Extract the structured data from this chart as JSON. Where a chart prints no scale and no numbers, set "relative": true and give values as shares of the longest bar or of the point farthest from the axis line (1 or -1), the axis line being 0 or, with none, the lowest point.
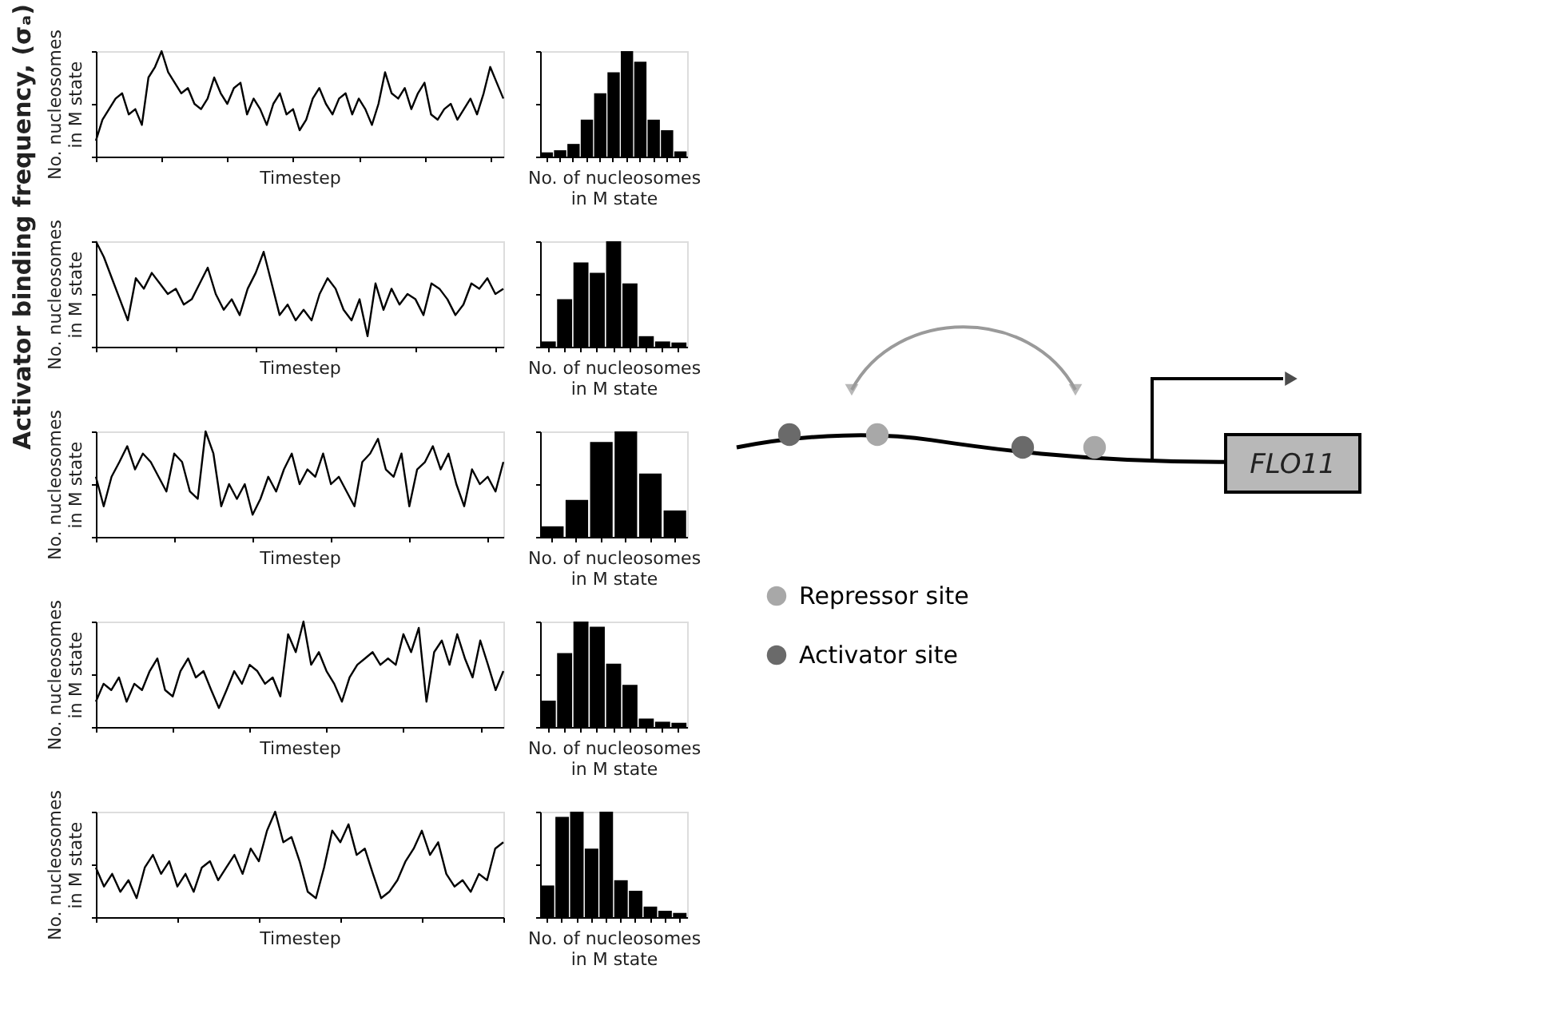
{
  "chart_data": [
    {
      "type": "other",
      "annotations": [
        "Activator binding frequency, (σₐ)"
      ]
    },
    {
      "type": "line",
      "relative": true,
      "xlabel": "Timestep",
      "ylabel": "No. nucleosomes in M state",
      "color": "#000000",
      "categories": [
        null,
        null,
        null,
        null,
        null,
        null,
        null,
        null,
        null,
        null,
        null,
        null,
        null,
        null,
        null,
        null,
        null,
        null,
        null,
        null,
        null,
        null,
        null,
        null,
        null,
        null,
        null,
        null,
        null,
        null,
        null,
        null,
        null,
        null,
        null,
        null,
        null,
        null,
        null,
        null,
        null,
        null,
        null,
        null,
        null,
        null,
        null,
        null,
        null,
        null,
        null,
        null,
        null,
        null,
        null,
        null,
        null,
        null,
        null,
        null,
        null,
        null,
        null
      ],
      "values": [
        0.15,
        0.35,
        0.45,
        0.55,
        0.6,
        0.4,
        0.45,
        0.3,
        0.75,
        0.85,
        1.0,
        0.8,
        0.7,
        0.6,
        0.65,
        0.5,
        0.45,
        0.55,
        0.75,
        0.6,
        0.5,
        0.65,
        0.7,
        0.4,
        0.55,
        0.45,
        0.3,
        0.5,
        0.6,
        0.4,
        0.45,
        0.25,
        0.35,
        0.55,
        0.65,
        0.5,
        0.4,
        0.55,
        0.6,
        0.4,
        0.55,
        0.45,
        0.3,
        0.5,
        0.8,
        0.6,
        0.55,
        0.65,
        0.45,
        0.6,
        0.7,
        0.4,
        0.35,
        0.45,
        0.5,
        0.35,
        0.45,
        0.55,
        0.4,
        0.6,
        0.85,
        0.7,
        0.55
      ]
    },
    {
      "type": "bar",
      "relative": true,
      "xlabel": "No. of nucleosomes in M state",
      "color": "#000000",
      "categories": [
        null,
        null,
        null,
        null,
        null,
        null,
        null,
        null,
        null,
        null,
        null
      ],
      "values": [
        0.04,
        0.06,
        0.12,
        0.35,
        0.6,
        0.8,
        1.0,
        0.9,
        0.35,
        0.25,
        0.05
      ]
    },
    {
      "type": "line",
      "relative": true,
      "xlabel": "Timestep",
      "ylabel": "No. nucleosomes in M state",
      "color": "#000000",
      "categories": [
        null,
        null,
        null,
        null,
        null,
        null,
        null,
        null,
        null,
        null,
        null,
        null,
        null,
        null,
        null,
        null,
        null,
        null,
        null,
        null,
        null,
        null,
        null,
        null,
        null,
        null,
        null,
        null,
        null,
        null,
        null,
        null,
        null,
        null,
        null,
        null,
        null,
        null,
        null,
        null,
        null,
        null,
        null,
        null,
        null,
        null,
        null,
        null,
        null,
        null,
        null,
        null
      ],
      "values": [
        1.0,
        0.85,
        0.65,
        0.45,
        0.25,
        0.65,
        0.55,
        0.7,
        0.6,
        0.5,
        0.55,
        0.4,
        0.45,
        0.6,
        0.75,
        0.5,
        0.35,
        0.45,
        0.3,
        0.55,
        0.7,
        0.9,
        0.6,
        0.3,
        0.4,
        0.25,
        0.35,
        0.25,
        0.5,
        0.65,
        0.55,
        0.35,
        0.25,
        0.45,
        0.1,
        0.6,
        0.35,
        0.55,
        0.4,
        0.5,
        0.45,
        0.3,
        0.6,
        0.55,
        0.45,
        0.3,
        0.4,
        0.6,
        0.55,
        0.65,
        0.5,
        0.55
      ]
    },
    {
      "type": "bar",
      "relative": true,
      "xlabel": "No. of nucleosomes in M state",
      "color": "#000000",
      "categories": [
        null,
        null,
        null,
        null,
        null,
        null,
        null,
        null,
        null
      ],
      "values": [
        0.05,
        0.45,
        0.8,
        0.7,
        1.0,
        0.6,
        0.1,
        0.05,
        0.04
      ]
    },
    {
      "type": "line",
      "relative": true,
      "xlabel": "Timestep",
      "ylabel": "No. nucleosomes in M state",
      "color": "#000000",
      "categories": [
        null,
        null,
        null,
        null,
        null,
        null,
        null,
        null,
        null,
        null,
        null,
        null,
        null,
        null,
        null,
        null,
        null,
        null,
        null,
        null,
        null,
        null,
        null,
        null,
        null,
        null,
        null,
        null,
        null,
        null,
        null,
        null,
        null,
        null,
        null,
        null,
        null,
        null,
        null,
        null,
        null,
        null,
        null,
        null,
        null,
        null,
        null,
        null,
        null,
        null,
        null,
        null,
        null
      ],
      "values": [
        0.57,
        0.29,
        0.57,
        0.71,
        0.86,
        0.64,
        0.79,
        0.71,
        0.57,
        0.43,
        0.79,
        0.71,
        0.43,
        0.36,
        1,
        0.79,
        0.29,
        0.5,
        0.36,
        0.5,
        0.21,
        0.36,
        0.57,
        0.43,
        0.64,
        0.79,
        0.5,
        0.64,
        0.57,
        0.79,
        0.5,
        0.57,
        0.43,
        0.29,
        0.71,
        0.79,
        0.93,
        0.64,
        0.57,
        0.79,
        0.29,
        0.64,
        0.71,
        0.86,
        0.64,
        0.79,
        0.5,
        0.29,
        0.64,
        0.5,
        0.57,
        0.43,
        0.71
      ]
    },
    {
      "type": "bar",
      "relative": true,
      "xlabel": "No. of nucleosomes in M state",
      "color": "#000000",
      "categories": [
        null,
        null,
        null,
        null,
        null,
        null
      ],
      "values": [
        0.1,
        0.35,
        0.9,
        1.0,
        0.6,
        0.25
      ]
    },
    {
      "type": "line",
      "relative": true,
      "xlabel": "Timestep",
      "ylabel": "No. nucleosomes in M state",
      "color": "#000000",
      "categories": [
        null,
        null,
        null,
        null,
        null,
        null,
        null,
        null,
        null,
        null,
        null,
        null,
        null,
        null,
        null,
        null,
        null,
        null,
        null,
        null,
        null,
        null,
        null,
        null,
        null,
        null,
        null,
        null,
        null,
        null,
        null,
        null,
        null,
        null,
        null,
        null,
        null,
        null,
        null,
        null,
        null,
        null,
        null,
        null,
        null,
        null,
        null,
        null,
        null,
        null,
        null,
        null,
        null,
        null
      ],
      "values": [
        0.24,
        0.41,
        0.35,
        0.47,
        0.24,
        0.41,
        0.35,
        0.53,
        0.65,
        0.35,
        0.29,
        0.53,
        0.65,
        0.47,
        0.53,
        0.35,
        0.18,
        0.35,
        0.53,
        0.41,
        0.59,
        0.53,
        0.41,
        0.47,
        0.29,
        0.88,
        0.71,
        1,
        0.59,
        0.71,
        0.53,
        0.41,
        0.24,
        0.47,
        0.59,
        0.65,
        0.71,
        0.59,
        0.65,
        0.59,
        0.88,
        0.71,
        0.94,
        0.24,
        0.71,
        0.82,
        0.59,
        0.88,
        0.65,
        0.47,
        0.82,
        0.59,
        0.35,
        0.53
      ]
    },
    {
      "type": "bar",
      "relative": true,
      "xlabel": "No. of nucleosomes in M state",
      "color": "#000000",
      "categories": [
        null,
        null,
        null,
        null,
        null,
        null,
        null,
        null,
        null
      ],
      "values": [
        0.25,
        0.7,
        1.0,
        0.95,
        0.6,
        0.4,
        0.08,
        0.05,
        0.04
      ]
    },
    {
      "type": "line",
      "relative": true,
      "xlabel": "Timestep",
      "ylabel": "No. nucleosomes in M state",
      "color": "#000000",
      "categories": [
        null,
        null,
        null,
        null,
        null,
        null,
        null,
        null,
        null,
        null,
        null,
        null,
        null,
        null,
        null,
        null,
        null,
        null,
        null,
        null,
        null,
        null,
        null,
        null,
        null,
        null,
        null,
        null,
        null,
        null,
        null,
        null,
        null,
        null,
        null,
        null,
        null,
        null,
        null,
        null,
        null,
        null,
        null,
        null,
        null,
        null,
        null,
        null,
        null,
        null,
        null
      ],
      "values": [
        0.47,
        0.29,
        0.41,
        0.24,
        0.35,
        0.18,
        0.47,
        0.59,
        0.41,
        0.53,
        0.29,
        0.41,
        0.24,
        0.47,
        0.53,
        0.35,
        0.47,
        0.59,
        0.41,
        0.65,
        0.53,
        0.82,
        1,
        0.71,
        0.76,
        0.53,
        0.24,
        0.18,
        0.47,
        0.82,
        0.71,
        0.88,
        0.59,
        0.65,
        0.41,
        0.18,
        0.24,
        0.35,
        0.53,
        0.65,
        0.82,
        0.59,
        0.71,
        0.41,
        0.29,
        0.35,
        0.24,
        0.41,
        0.35,
        0.65,
        0.71
      ]
    },
    {
      "type": "bar",
      "relative": true,
      "xlabel": "No. of nucleosomes in M state",
      "color": "#000000",
      "categories": [
        null,
        null,
        null,
        null,
        null,
        null,
        null,
        null,
        null,
        null
      ],
      "values": [
        0.3,
        0.95,
        1.0,
        0.65,
        1.0,
        0.35,
        0.25,
        0.1,
        0.06,
        0.04
      ]
    },
    {
      "type": "other",
      "annotations": [
        "FLO11"
      ],
      "categories": [
        "Repressor site",
        "Activator site"
      ],
      "colors": [
        "#a8a8a8",
        "#6a6a6a"
      ]
    }
  ]
}
